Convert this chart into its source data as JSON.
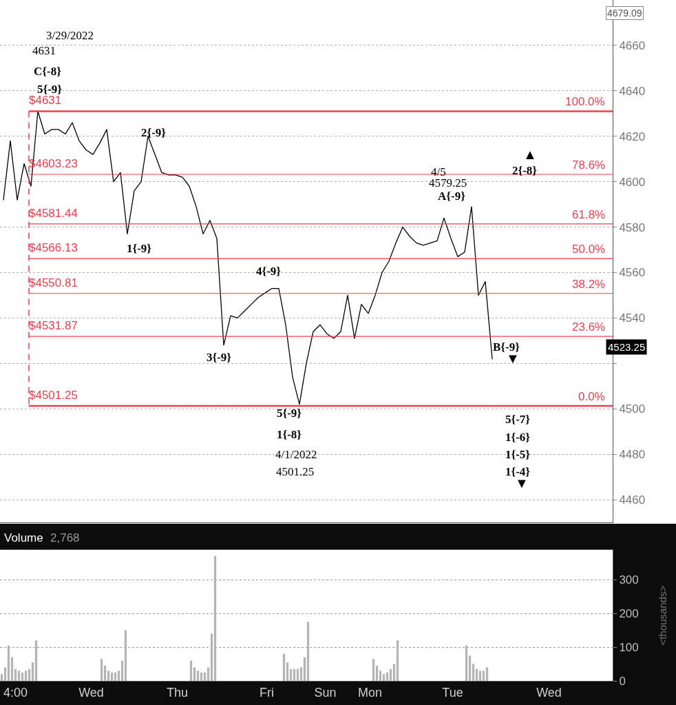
{
  "chart_data": [
    {
      "type": "line",
      "tick_labels": "y",
      "grid": "y",
      "ylim": [
        4450,
        4680
      ],
      "categories": [
        null,
        null,
        null,
        null,
        null,
        null,
        null,
        null,
        null,
        null,
        null,
        null,
        null,
        null,
        null,
        null,
        null,
        null,
        null,
        null,
        null,
        null,
        null,
        null,
        null,
        null,
        null,
        null,
        null,
        null,
        null,
        null,
        null,
        null,
        null,
        null,
        null,
        null,
        null,
        null,
        null,
        null,
        null,
        null,
        null,
        null,
        null,
        null,
        null,
        null,
        null,
        null,
        null,
        null,
        null,
        null,
        null,
        null,
        null,
        null,
        null,
        null,
        null,
        null,
        null,
        null,
        null,
        null,
        null,
        null,
        null,
        null,
        null,
        null,
        null,
        null,
        null,
        null,
        null,
        null,
        null,
        null,
        null,
        null,
        null,
        null,
        null,
        null,
        null
      ],
      "yticks": [
        4460,
        4480,
        4500,
        {
          "value": 4520,
          "label": null
        },
        4540,
        4560,
        4580,
        4600,
        4620,
        4640,
        4660
      ],
      "series": [
        {
          "color": "#000000",
          "values": [
            4592,
            4618,
            4592,
            4608,
            4598,
            4631,
            4621,
            4623,
            4623,
            4621,
            4626,
            4618,
            4614,
            4612,
            4617,
            4623,
            4600,
            4604,
            4577,
            4596,
            4600,
            4620,
            4612,
            4604,
            4603,
            4603,
            4602,
            4598,
            4589,
            4577,
            4583,
            4575,
            4528,
            4541,
            4540,
            4543,
            4546,
            4549,
            4551,
            4553,
            4553,
            4537,
            4514,
            4502,
            4520,
            4534,
            4537,
            4533,
            4531,
            4534,
            4550,
            4531,
            4546,
            4542,
            4550,
            4560,
            4565,
            4573,
            4580,
            4576,
            4573,
            4572,
            4573,
            4574,
            4584,
            4575,
            4567,
            4569,
            4589,
            4550,
            4556,
            4522,
            null,
            null,
            null,
            null,
            null,
            null,
            null,
            null,
            null,
            null,
            null,
            null,
            null,
            null,
            null,
            null,
            null
          ]
        }
      ],
      "ref_lines": [
        {
          "axis": "y",
          "value": 4631,
          "label": "$4631",
          "color": "#f03c4c"
        },
        {
          "axis": "y",
          "value": 4603.23,
          "label": "$4603.23",
          "color": "#f03c4c"
        },
        {
          "axis": "y",
          "value": 4581.44,
          "label": "$4581.44",
          "color": "#f03c4c"
        },
        {
          "axis": "y",
          "value": 4566.13,
          "label": "$4566.13",
          "color": "#f03c4c"
        },
        {
          "axis": "y",
          "value": 4550.81,
          "label": "$4550.81",
          "color": "#f03c4c"
        },
        {
          "axis": "y",
          "value": 4531.87,
          "label": "$4531.87",
          "color": "#f03c4c"
        },
        {
          "axis": "y",
          "value": 4501.25,
          "label": "$4501.25",
          "color": "#f03c4c"
        }
      ],
      "annotations": [
        {
          "text": "100.0%",
          "y": 4631
        },
        {
          "text": "78.6%",
          "y": 4603.23
        },
        {
          "text": "61.8%",
          "y": 4581.44
        },
        {
          "text": "50.0%",
          "y": 4566.13
        },
        {
          "text": "38.2%",
          "y": 4550.81
        },
        {
          "text": "23.6%",
          "y": 4531.87
        },
        {
          "text": "0.0%",
          "y": 4501.25
        },
        "3/29/2022",
        "4631",
        "C{-8}",
        "5{-9}",
        "2{-9}",
        "1{-9}",
        "4{-9}",
        "3{-9}",
        "5{-9}",
        "1{-8}",
        "4/1/2022",
        "4501.25",
        "4/5",
        "4579.25",
        "A{-9}",
        "▲",
        "2{-8}",
        "B{-9}",
        "▼",
        "5{-7}",
        "1{-6}",
        "1{-5}",
        "1{-4}",
        "▼",
        "4679.09",
        "4523.25"
      ]
    },
    {
      "type": "bar",
      "ylabel": "<thousands>",
      "grid": "y",
      "ylim": [
        0,
        388
      ],
      "yticks": [
        0,
        100,
        200,
        300
      ],
      "categories": [
        null,
        null,
        null,
        null,
        "4:00",
        null,
        null,
        null,
        null,
        null,
        null,
        null,
        null,
        null,
        null,
        null,
        null,
        null,
        null,
        null,
        null,
        null,
        null,
        null,
        null,
        null,
        "Wed",
        null,
        null,
        null,
        null,
        null,
        null,
        null,
        null,
        null,
        null,
        null,
        null,
        null,
        null,
        null,
        null,
        null,
        null,
        null,
        null,
        null,
        null,
        null,
        null,
        "Thu",
        null,
        null,
        null,
        null,
        null,
        null,
        null,
        null,
        null,
        null,
        null,
        null,
        null,
        null,
        null,
        null,
        null,
        null,
        null,
        null,
        null,
        null,
        null,
        null,
        null,
        "Fri",
        null,
        null,
        null,
        null,
        null,
        null,
        null,
        null,
        null,
        null,
        null,
        null,
        null,
        null,
        null,
        null,
        "Sun",
        null,
        null,
        null,
        null,
        null,
        null,
        null,
        null,
        null,
        null,
        null,
        null,
        "Mon",
        null,
        null,
        null,
        null,
        null,
        null,
        null,
        null,
        null,
        null,
        null,
        null,
        null,
        null,
        null,
        null,
        null,
        null,
        null,
        null,
        null,
        null,
        null,
        "Tue",
        null,
        null,
        null,
        null,
        null,
        null,
        null,
        null,
        null,
        null,
        null,
        null,
        null,
        null,
        null,
        null,
        null,
        null,
        null,
        null,
        null,
        null,
        null,
        null,
        null,
        null,
        null,
        "Wed",
        null,
        null,
        null,
        null,
        null,
        null,
        null,
        null,
        null,
        null,
        null,
        null,
        null,
        null,
        null,
        null,
        null,
        null
      ],
      "series": [
        {
          "color": "#b4b4b4",
          "values": [
            20,
            40,
            105,
            70,
            35,
            30,
            25,
            30,
            35,
            55,
            120,
            null,
            null,
            null,
            null,
            null,
            null,
            null,
            null,
            null,
            null,
            null,
            null,
            null,
            null,
            null,
            null,
            null,
            null,
            65,
            45,
            30,
            25,
            25,
            30,
            60,
            150,
            null,
            null,
            null,
            null,
            null,
            null,
            null,
            null,
            null,
            null,
            null,
            null,
            null,
            null,
            null,
            null,
            null,
            null,
            60,
            40,
            30,
            25,
            25,
            40,
            140,
            370,
            null,
            null,
            null,
            null,
            null,
            null,
            null,
            null,
            null,
            null,
            null,
            null,
            null,
            null,
            null,
            null,
            null,
            null,
            null,
            80,
            55,
            35,
            35,
            35,
            40,
            70,
            175,
            null,
            null,
            null,
            null,
            null,
            null,
            null,
            null,
            null,
            null,
            null,
            null,
            null,
            null,
            null,
            null,
            null,
            null,
            65,
            45,
            30,
            20,
            25,
            35,
            50,
            120,
            null,
            null,
            null,
            null,
            null,
            null,
            null,
            null,
            null,
            null,
            null,
            null,
            null,
            null,
            null,
            null,
            null,
            null,
            null,
            105,
            75,
            50,
            35,
            30,
            30,
            40,
            null,
            null,
            null,
            null,
            null,
            null,
            null,
            null,
            null,
            null,
            null,
            null,
            null,
            null,
            null,
            null,
            null,
            null,
            null,
            null,
            null,
            null,
            null,
            null,
            null,
            null,
            null,
            null,
            null,
            null,
            null,
            null,
            null,
            null,
            null,
            null
          ]
        }
      ],
      "annotations": [
        "Volume",
        "2,768"
      ]
    }
  ]
}
